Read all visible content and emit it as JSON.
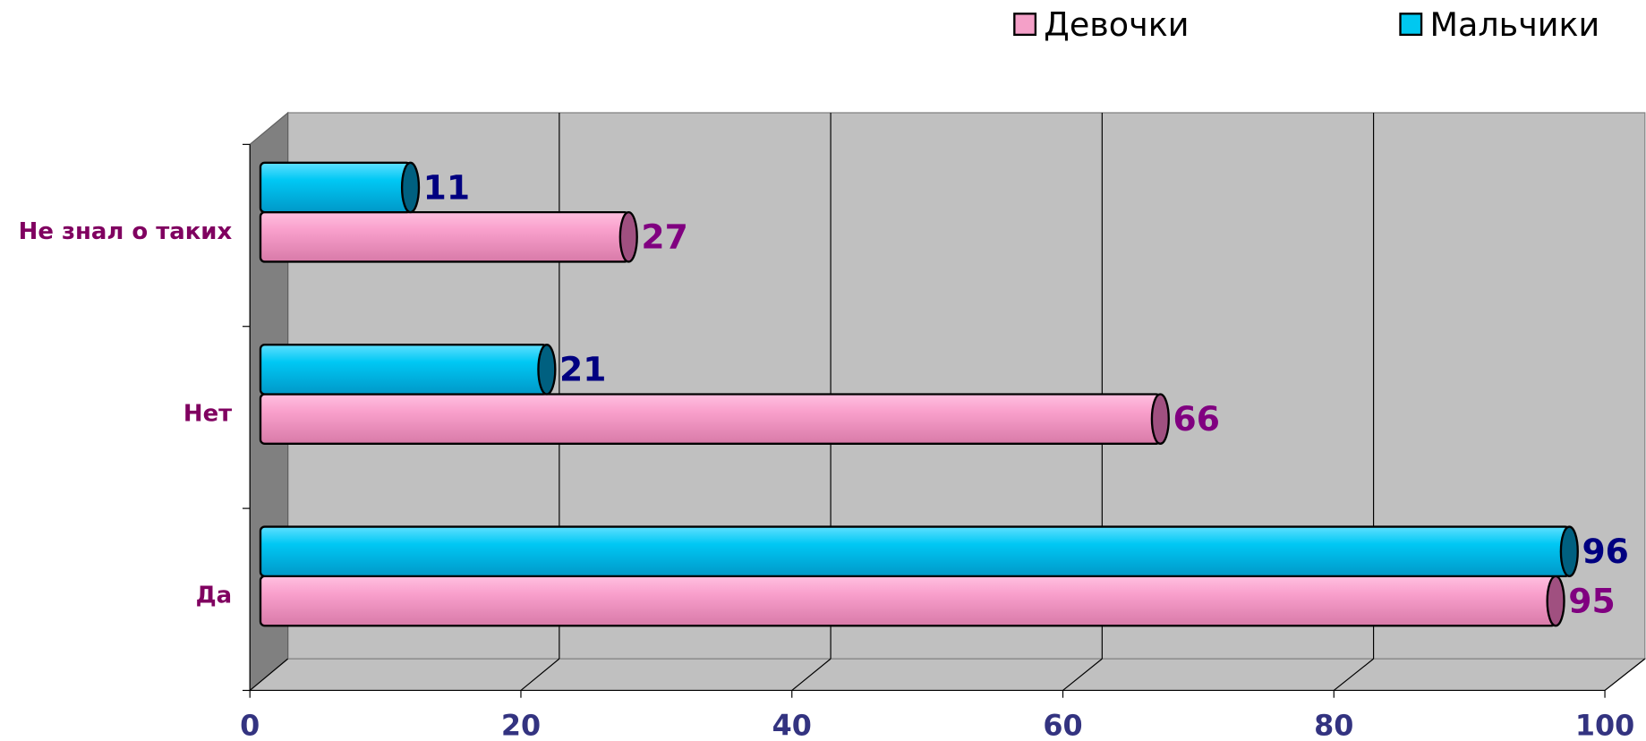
{
  "chart_data": {
    "type": "bar",
    "orientation": "horizontal",
    "three_d": true,
    "categories": [
      "Да",
      "Нет",
      "Не знал о таких"
    ],
    "series": [
      {
        "name": "Девочки",
        "color": "#f4a0c8",
        "values": [
          95,
          66,
          27
        ]
      },
      {
        "name": "Мальчики",
        "color": "#00c8f0",
        "values": [
          96,
          21,
          11
        ]
      }
    ],
    "xlim": [
      0,
      100
    ],
    "xticks": [
      0,
      20,
      40,
      60,
      80,
      100
    ],
    "grid": true,
    "legend": "top-right"
  }
}
